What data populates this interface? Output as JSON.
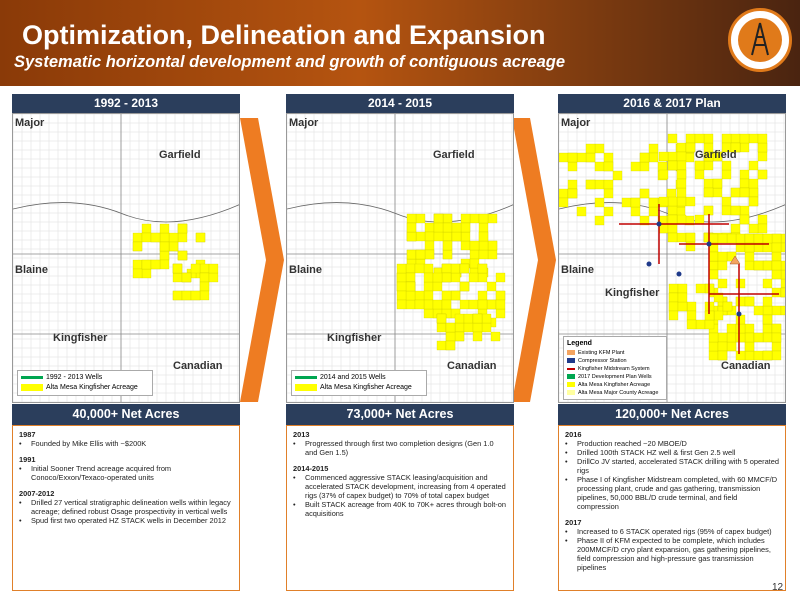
{
  "header": {
    "title": "Optimization, Delineation and Expansion",
    "subtitle": "Systematic horizontal development and growth of contiguous acreage"
  },
  "panels": [
    {
      "period": "1992 - 2013",
      "map": {
        "labels": [
          "Major",
          "Garfield",
          "Blaine",
          "Kingfisher",
          "Canadian"
        ],
        "legend": [
          "1992 - 2013 Wells",
          "Alta Mesa Kingfisher Acreage"
        ]
      },
      "net_acres": "40,000+ Net Acres",
      "sections": [
        {
          "heading": "1987",
          "bullets": [
            "Founded by Mike Ellis with ~$200K"
          ]
        },
        {
          "heading": "1991",
          "bullets": [
            "Initial Sooner Trend acreage acquired from Conoco/Exxon/Texaco-operated units"
          ]
        },
        {
          "heading": "2007-2012",
          "bullets": [
            "Drilled 27 vertical stratigraphic delineation wells within legacy acreage; defined robust Osage prospectivity in vertical wells",
            "Spud first two operated HZ STACK wells in December 2012"
          ]
        }
      ]
    },
    {
      "period": "2014 - 2015",
      "map": {
        "labels": [
          "Major",
          "Garfield",
          "Blaine",
          "Kingfisher",
          "Canadian"
        ],
        "legend": [
          "2014 and 2015 Wells",
          "Alta Mesa Kingfisher Acreage"
        ]
      },
      "net_acres": "73,000+ Net Acres",
      "sections": [
        {
          "heading": "2013",
          "bullets": [
            "Progressed through first two completion designs (Gen 1.0 and Gen 1.5)"
          ]
        },
        {
          "heading": "2014-2015",
          "bullets": [
            "Commenced aggressive STACK leasing/acquisition and accelerated STACK development, increasing from 4 operated rigs (37% of capex budget) to 70% of total capex budget",
            "Built STACK acreage from 40K to 70K+ acres through bolt-on acquisitions"
          ]
        }
      ]
    },
    {
      "period": "2016 & 2017 Plan",
      "map": {
        "labels": [
          "Major",
          "Garfield",
          "Blaine",
          "Kingfisher",
          "Canadian"
        ],
        "legend_title": "Legend",
        "legend": [
          "Existing KFM Plant",
          "Compressor Station",
          "Kingfisher Midstream System",
          "2017 Development Plan Wells",
          "Alta Mesa Kingfisher Acreage",
          "Alta Mesa Major County Acreage"
        ]
      },
      "net_acres": "120,000+ Net Acres",
      "sections": [
        {
          "heading": "2016",
          "bullets": [
            "Production reached ~20 MBOE/D",
            "Drilled 100th STACK HZ well & first Gen 2.5 well",
            "DrillCo JV started, accelerated STACK drilling with 5 operated rigs",
            "Phase I of Kingfisher Midstream completed, with 60 MMCF/D processing plant, crude and gas gathering, transmission pipelines, 50,000 BBL/D crude terminal, and field compression"
          ]
        },
        {
          "heading": "2017",
          "bullets": [
            "Increased to 6 STACK operated rigs (95% of capex budget)",
            "Phase II of KFM expected to be complete, which includes 200MMCF/D cryo plant expansion, gas gathering pipelines, field compression and high-pressure gas transmission pipelines"
          ]
        }
      ]
    }
  ],
  "page_number": "12"
}
